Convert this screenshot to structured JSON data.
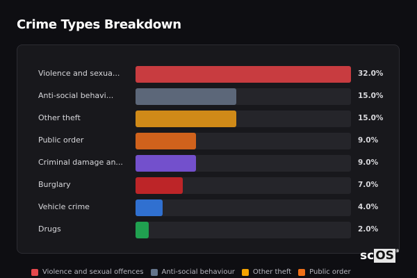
{
  "title": "Crime Types Breakdown",
  "chart_data": {
    "type": "bar",
    "orientation": "horizontal",
    "title": "Crime Types Breakdown",
    "categories": [
      "Violence and sexua...",
      "Anti-social behavi...",
      "Other theft",
      "Public order",
      "Criminal damage an...",
      "Burglary",
      "Vehicle crime",
      "Drugs"
    ],
    "values": [
      32.0,
      15.0,
      15.0,
      9.0,
      9.0,
      7.0,
      4.0,
      2.0
    ],
    "value_labels": [
      "32.0%",
      "15.0%",
      "15.0%",
      "9.0%",
      "9.0%",
      "7.0%",
      "4.0%",
      "2.0%"
    ],
    "colors": [
      "#c83c40",
      "#5c6779",
      "#d08a18",
      "#d0621c",
      "#7350cc",
      "#bd2528",
      "#3070d0",
      "#20a050"
    ],
    "xlim": [
      0,
      32
    ],
    "legend": {
      "placement": "bottom",
      "items": [
        {
          "name": "Violence and sexual offences",
          "color": "#e5484d"
        },
        {
          "name": "Anti-social behaviour",
          "color": "#64748b"
        },
        {
          "name": "Other theft",
          "color": "#f5a300"
        },
        {
          "name": "Public order",
          "color": "#f07018"
        }
      ]
    }
  },
  "logo": {
    "text_a": "sc",
    "text_b": "OS",
    "mark": "®"
  }
}
